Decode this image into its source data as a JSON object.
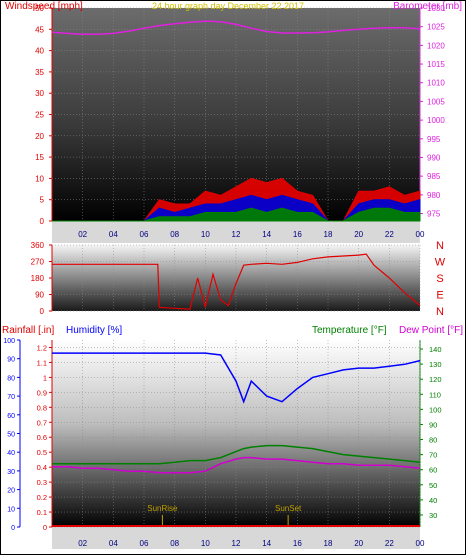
{
  "chart_data": [
    {
      "type": "line",
      "title": "24 hour graph day   December 22 2017",
      "ylabel_left": "Windspeed [mph]",
      "ylabel_right": "Barometer [mb]",
      "y_left_ticks": [
        "0",
        "5",
        "10",
        "15",
        "20",
        "25",
        "30",
        "35",
        "40",
        "45",
        "50"
      ],
      "y_right_ticks": [
        "975",
        "980",
        "985",
        "990",
        "995",
        "1000",
        "1005",
        "1010",
        "1015",
        "1020",
        "1025",
        "1030"
      ],
      "x_ticks": [
        "02",
        "04",
        "06",
        "08",
        "10",
        "12",
        "14",
        "16",
        "18",
        "20",
        "22",
        "00"
      ],
      "ylim_left": [
        0,
        50
      ],
      "ylim_right": [
        973,
        1030
      ],
      "x_hours": [
        0,
        1,
        2,
        3,
        4,
        5,
        6,
        7,
        8,
        9,
        10,
        11,
        12,
        13,
        14,
        15,
        16,
        17,
        18,
        19,
        20,
        21,
        22,
        23,
        24
      ],
      "series": [
        {
          "name": "Barometer",
          "axis": "right",
          "color": "#e020e0",
          "values": [
            1023.5,
            1023.2,
            1023.0,
            1023.0,
            1023.2,
            1023.8,
            1024.6,
            1025.3,
            1025.8,
            1026.2,
            1026.5,
            1026.3,
            1025.6,
            1024.6,
            1023.7,
            1023.3,
            1023.3,
            1023.4,
            1023.6,
            1024.0,
            1024.3,
            1024.6,
            1024.7,
            1024.7,
            1024.4
          ]
        },
        {
          "name": "Wind Gust",
          "axis": "left",
          "color": "#e00000",
          "values": [
            0,
            0,
            0,
            0,
            0,
            0,
            0,
            5,
            4,
            4,
            7,
            6,
            8,
            10,
            9,
            10,
            7,
            6,
            0,
            0,
            7,
            7,
            8,
            6,
            7
          ]
        },
        {
          "name": "Wind Average",
          "axis": "left",
          "color": "#0000d0",
          "values": [
            0,
            0,
            0,
            0,
            0,
            0,
            0,
            3,
            2,
            3,
            4,
            4,
            5,
            6,
            5,
            6,
            5,
            4,
            0,
            0,
            4,
            5,
            5,
            4,
            5
          ]
        },
        {
          "name": "Wind Speed",
          "axis": "left",
          "color": "#008000",
          "values": [
            0,
            0,
            0,
            0,
            0,
            0,
            0,
            1,
            1,
            1,
            2,
            2,
            2,
            3,
            2,
            3,
            2,
            2,
            0,
            0,
            2,
            3,
            3,
            2,
            2
          ]
        }
      ]
    },
    {
      "type": "line",
      "ylabel_left": "",
      "y_ticks": [
        "0",
        "90",
        "180",
        "270",
        "360"
      ],
      "compass_labels": [
        "N",
        "W",
        "S",
        "E",
        "N"
      ],
      "ylim": [
        0,
        360
      ],
      "x_hours": [
        0,
        1,
        2,
        3,
        4,
        5,
        6,
        6.9,
        7,
        8,
        9,
        9.5,
        10,
        10.5,
        11,
        11.5,
        12,
        12.5,
        13,
        14,
        15,
        16,
        17,
        18,
        19,
        20,
        20.5,
        21,
        22,
        23,
        24
      ],
      "series": [
        {
          "name": "Wind Direction",
          "color": "#e00000",
          "values": [
            255,
            255,
            255,
            255,
            255,
            255,
            255,
            255,
            20,
            15,
            10,
            180,
            20,
            200,
            60,
            30,
            150,
            250,
            255,
            260,
            255,
            265,
            285,
            295,
            300,
            305,
            310,
            250,
            180,
            100,
            30
          ]
        }
      ]
    },
    {
      "type": "line",
      "ylabel_rain": "Rainfall [.in]",
      "ylabel_humidity": "Humidity [%]",
      "ylabel_temp": "Temperature [°F]",
      "ylabel_dew": "Dew Point [°F]",
      "y_humidity_ticks": [
        "0",
        "10",
        "20",
        "30",
        "40",
        "50",
        "60",
        "70",
        "80",
        "90",
        "100"
      ],
      "y_rain_ticks": [
        "0",
        "0.1",
        "0.2",
        "0.3",
        "0.4",
        "0.5",
        "0.6",
        "0.7",
        "0.8",
        "0.9",
        "1",
        "1.1",
        "1.2"
      ],
      "y_temp_ticks": [
        "30",
        "40",
        "50",
        "60",
        "70",
        "80",
        "90",
        "100",
        "110",
        "120",
        "130",
        "140"
      ],
      "x_ticks": [
        "02",
        "04",
        "06",
        "08",
        "10",
        "12",
        "14",
        "16",
        "18",
        "20",
        "22",
        "00"
      ],
      "ylim_humidity": [
        0,
        100
      ],
      "ylim_temp": [
        22,
        146
      ],
      "annotations": [
        "SunRise",
        "SunSet"
      ],
      "sunrise_hour": 7.2,
      "sunset_hour": 15.4,
      "x_hours": [
        0,
        1,
        2,
        3,
        4,
        5,
        6,
        7,
        8,
        9,
        10,
        11,
        12,
        12.5,
        13,
        14,
        15,
        16,
        17,
        18,
        19,
        20,
        21,
        22,
        23,
        24
      ],
      "series": [
        {
          "name": "Humidity",
          "color": "#0000ff",
          "values": [
            93,
            93,
            93,
            93,
            93,
            93,
            93,
            93,
            93,
            93,
            93,
            92,
            78,
            67,
            78,
            70,
            67,
            74,
            80,
            82,
            84,
            85,
            85,
            86,
            87,
            89
          ]
        },
        {
          "name": "Temperature",
          "color": "#008000",
          "values": [
            64,
            64,
            64,
            64,
            64,
            64,
            64,
            64,
            65,
            66,
            66,
            68,
            72,
            74,
            75,
            76,
            76,
            75,
            74,
            72,
            70,
            69,
            68,
            67,
            66,
            65
          ]
        },
        {
          "name": "Dew Point",
          "color": "#d000d0",
          "values": [
            62,
            62,
            61,
            61,
            60,
            59,
            59,
            58,
            58,
            58,
            59,
            64,
            67,
            68,
            68,
            67,
            67,
            66,
            65,
            64,
            64,
            63,
            63,
            63,
            62,
            61
          ]
        },
        {
          "name": "Rainfall",
          "color": "#e00000",
          "values": [
            0,
            0,
            0,
            0,
            0,
            0,
            0,
            0,
            0,
            0,
            0,
            0,
            0,
            0,
            0,
            0,
            0,
            0,
            0,
            0,
            0,
            0,
            0,
            0,
            0,
            0
          ]
        }
      ]
    }
  ]
}
